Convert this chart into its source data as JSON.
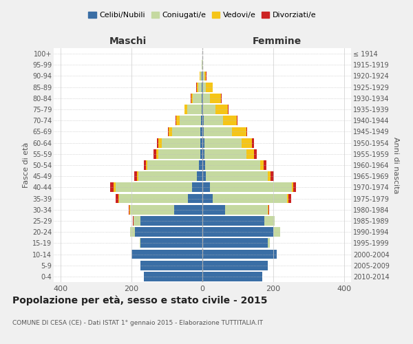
{
  "age_groups": [
    "0-4",
    "5-9",
    "10-14",
    "15-19",
    "20-24",
    "25-29",
    "30-34",
    "35-39",
    "40-44",
    "45-49",
    "50-54",
    "55-59",
    "60-64",
    "65-69",
    "70-74",
    "75-79",
    "80-84",
    "85-89",
    "90-94",
    "95-99",
    "100+"
  ],
  "birth_years": [
    "2010-2014",
    "2005-2009",
    "2000-2004",
    "1995-1999",
    "1990-1994",
    "1985-1989",
    "1980-1984",
    "1975-1979",
    "1970-1974",
    "1965-1969",
    "1960-1964",
    "1955-1959",
    "1950-1954",
    "1945-1949",
    "1940-1944",
    "1935-1939",
    "1930-1934",
    "1925-1929",
    "1920-1924",
    "1915-1919",
    "≤ 1914"
  ],
  "males": {
    "celibi": [
      165,
      175,
      200,
      175,
      190,
      175,
      80,
      40,
      30,
      15,
      10,
      5,
      5,
      5,
      4,
      2,
      2,
      1,
      1,
      0,
      0
    ],
    "coniugati": [
      0,
      0,
      0,
      2,
      15,
      20,
      125,
      195,
      215,
      165,
      145,
      120,
      110,
      80,
      60,
      40,
      25,
      10,
      5,
      1,
      0
    ],
    "vedovi": [
      0,
      0,
      0,
      0,
      0,
      0,
      2,
      2,
      5,
      5,
      5,
      5,
      10,
      10,
      10,
      8,
      5,
      5,
      2,
      0,
      0
    ],
    "divorziati": [
      0,
      0,
      0,
      0,
      0,
      1,
      2,
      8,
      10,
      8,
      5,
      8,
      3,
      2,
      1,
      1,
      1,
      1,
      0,
      0,
      0
    ]
  },
  "females": {
    "nubili": [
      170,
      185,
      210,
      185,
      200,
      175,
      65,
      30,
      22,
      10,
      8,
      5,
      5,
      4,
      3,
      2,
      2,
      1,
      1,
      0,
      0
    ],
    "coniugate": [
      0,
      0,
      0,
      5,
      20,
      30,
      120,
      210,
      230,
      175,
      155,
      120,
      105,
      80,
      55,
      35,
      20,
      8,
      4,
      1,
      0
    ],
    "vedove": [
      0,
      0,
      0,
      0,
      0,
      0,
      2,
      3,
      5,
      8,
      10,
      20,
      30,
      40,
      40,
      35,
      30,
      20,
      5,
      1,
      0
    ],
    "divorziate": [
      0,
      0,
      0,
      0,
      0,
      0,
      2,
      8,
      8,
      10,
      8,
      8,
      5,
      3,
      2,
      2,
      2,
      1,
      1,
      0,
      0
    ]
  },
  "colors": {
    "celibi": "#3a6ea5",
    "coniugati": "#c5d9a0",
    "vedovi": "#f5c518",
    "divorziati": "#cc2222"
  },
  "xlim": 420,
  "title": "Popolazione per età, sesso e stato civile - 2015",
  "subtitle": "COMUNE DI CESA (CE) - Dati ISTAT 1° gennaio 2015 - Elaborazione TUTTITALIA.IT",
  "xlabel_left": "Maschi",
  "xlabel_right": "Femmine",
  "ylabel_left": "Fasce di età",
  "ylabel_right": "Anni di nascita",
  "bg_color": "#f0f0f0",
  "plot_bg": "#ffffff"
}
